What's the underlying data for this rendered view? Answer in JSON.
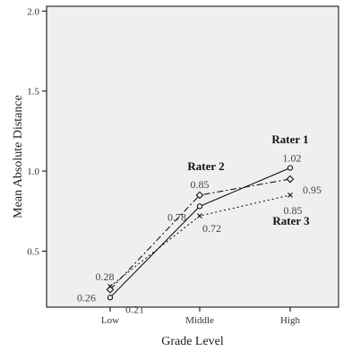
{
  "chart_data": {
    "type": "line",
    "categories": [
      "Low",
      "Middle",
      "High"
    ],
    "xlabel": "Grade Level",
    "ylabel": "Mean Absolute Distance",
    "ylim": [
      0.15,
      2.03
    ],
    "yticks": [
      0.5,
      1.0,
      1.5,
      2.0
    ],
    "ytick_labels": [
      "0.5",
      "1.0",
      "1.5",
      "2.0"
    ],
    "grid": false,
    "plot_background": "#efefef",
    "series": [
      {
        "name": "Rater 1",
        "values": [
          0.21,
          0.78,
          1.02
        ],
        "labels": [
          "0.21",
          "0.78",
          "1.02"
        ],
        "marker": "circle",
        "dash": "solid"
      },
      {
        "name": "Rater 2",
        "values": [
          0.26,
          0.85,
          0.95
        ],
        "labels": [
          "0.26",
          "0.85",
          "0.95"
        ],
        "marker": "diamond",
        "dash": "dashdot"
      },
      {
        "name": "Rater 3",
        "values": [
          0.28,
          0.72,
          0.85
        ],
        "labels": [
          "0.28",
          "0.72",
          "0.85"
        ],
        "marker": "x",
        "dash": "dotted"
      }
    ]
  }
}
